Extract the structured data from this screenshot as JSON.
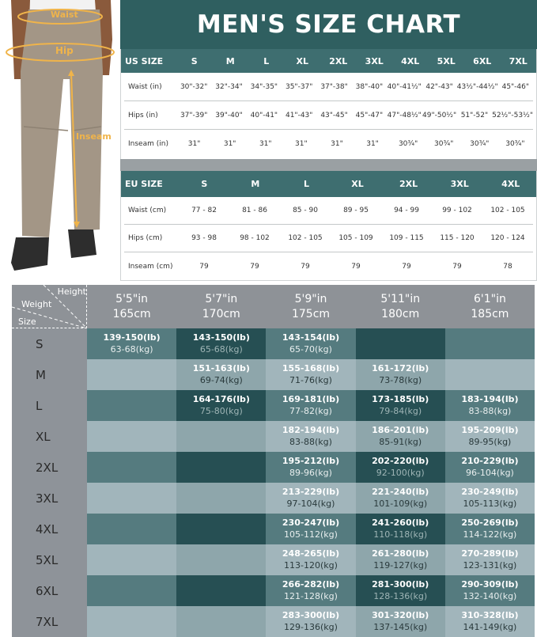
{
  "photo": {
    "labels": {
      "waist": "Waist",
      "hip": "Hip",
      "inseam": "Inseam"
    }
  },
  "title": "MEN'S SIZE CHART",
  "us": {
    "header": "US SIZE",
    "sizes": [
      "S",
      "M",
      "L",
      "XL",
      "2XL",
      "3XL",
      "4XL",
      "5XL",
      "6XL",
      "7XL"
    ],
    "rows": [
      {
        "label": "Waist (in)",
        "values": [
          "30\"-32\"",
          "32\"-34\"",
          "34\"-35\"",
          "35\"-37\"",
          "37\"-38\"",
          "38\"-40\"",
          "40\"-41½\"",
          "42\"-43\"",
          "43½\"-44½\"",
          "45\"-46\""
        ]
      },
      {
        "label": "Hips (in)",
        "values": [
          "37\"-39\"",
          "39\"-40\"",
          "40\"-41\"",
          "41\"-43\"",
          "43\"-45\"",
          "45\"-47\"",
          "47\"-48½\"",
          "49\"-50½\"",
          "51\"-52\"",
          "52½\"-53½\""
        ]
      },
      {
        "label": "Inseam (in)",
        "values": [
          "31\"",
          "31\"",
          "31\"",
          "31\"",
          "31\"",
          "31\"",
          "30¾\"",
          "30¾\"",
          "30¾\"",
          "30¾\""
        ]
      }
    ]
  },
  "eu": {
    "header": "EU SIZE",
    "sizes": [
      "S",
      "M",
      "L",
      "XL",
      "2XL",
      "3XL",
      "4XL"
    ],
    "rows": [
      {
        "label": "Waist (cm)",
        "values": [
          "77 - 82",
          "81 - 86",
          "85 - 90",
          "89 - 95",
          "94 - 99",
          "99 - 102",
          "102 - 105"
        ]
      },
      {
        "label": "Hips (cm)",
        "values": [
          "93 - 98",
          "98 - 102",
          "102 - 105",
          "105 - 109",
          "109 - 115",
          "115 - 120",
          "120 - 124"
        ]
      },
      {
        "label": "Inseam (cm)",
        "values": [
          "79",
          "79",
          "79",
          "79",
          "79",
          "79",
          "78"
        ]
      }
    ]
  },
  "grid": {
    "corner": {
      "height": "Height",
      "weight": "Weight",
      "size": "Size"
    },
    "heights": [
      {
        "ft": "5'5\"in",
        "cm": "165cm"
      },
      {
        "ft": "5'7\"in",
        "cm": "170cm"
      },
      {
        "ft": "5'9\"in",
        "cm": "175cm"
      },
      {
        "ft": "5'11\"in",
        "cm": "180cm"
      },
      {
        "ft": "6'1\"in",
        "cm": "185cm"
      }
    ],
    "rows": [
      {
        "size": "S",
        "cells": [
          [
            "139-150(lb)",
            "63-68(kg)"
          ],
          [
            "143-150(lb)",
            "65-68(kg)"
          ],
          [
            "143-154(lb)",
            "65-70(kg)"
          ],
          [
            "",
            ""
          ],
          [
            "",
            ""
          ]
        ]
      },
      {
        "size": "M",
        "cells": [
          [
            "",
            ""
          ],
          [
            "151-163(lb)",
            "69-74(kg)"
          ],
          [
            "155-168(lb)",
            "71-76(kg)"
          ],
          [
            "161-172(lb)",
            "73-78(kg)"
          ],
          [
            "",
            ""
          ]
        ]
      },
      {
        "size": "L",
        "cells": [
          [
            "",
            ""
          ],
          [
            "164-176(lb)",
            "75-80(kg)"
          ],
          [
            "169-181(lb)",
            "77-82(kg)"
          ],
          [
            "173-185(lb)",
            "79-84(kg)"
          ],
          [
            "183-194(lb)",
            "83-88(kg)"
          ]
        ]
      },
      {
        "size": "XL",
        "cells": [
          [
            "",
            ""
          ],
          [
            "",
            ""
          ],
          [
            "182-194(lb)",
            "83-88(kg)"
          ],
          [
            "186-201(lb)",
            "85-91(kg)"
          ],
          [
            "195-209(lb)",
            "89-95(kg)"
          ]
        ]
      },
      {
        "size": "2XL",
        "cells": [
          [
            "",
            ""
          ],
          [
            "",
            ""
          ],
          [
            "195-212(lb)",
            "89-96(kg)"
          ],
          [
            "202-220(lb)",
            "92-100(kg)"
          ],
          [
            "210-229(lb)",
            "96-104(kg)"
          ]
        ]
      },
      {
        "size": "3XL",
        "cells": [
          [
            "",
            ""
          ],
          [
            "",
            ""
          ],
          [
            "213-229(lb)",
            "97-104(kg)"
          ],
          [
            "221-240(lb)",
            "101-109(kg)"
          ],
          [
            "230-249(lb)",
            "105-113(kg)"
          ]
        ]
      },
      {
        "size": "4XL",
        "cells": [
          [
            "",
            ""
          ],
          [
            "",
            ""
          ],
          [
            "230-247(lb)",
            "105-112(kg)"
          ],
          [
            "241-260(lb)",
            "110-118(kg)"
          ],
          [
            "250-269(lb)",
            "114-122(kg)"
          ]
        ]
      },
      {
        "size": "5XL",
        "cells": [
          [
            "",
            ""
          ],
          [
            "",
            ""
          ],
          [
            "248-265(lb)",
            "113-120(kg)"
          ],
          [
            "261-280(lb)",
            "119-127(kg)"
          ],
          [
            "270-289(lb)",
            "123-131(kg)"
          ]
        ]
      },
      {
        "size": "6XL",
        "cells": [
          [
            "",
            ""
          ],
          [
            "",
            ""
          ],
          [
            "266-282(lb)",
            "121-128(kg)"
          ],
          [
            "281-300(lb)",
            "128-136(kg)"
          ],
          [
            "290-309(lb)",
            "132-140(kg)"
          ]
        ]
      },
      {
        "size": "7XL",
        "cells": [
          [
            "",
            ""
          ],
          [
            "",
            ""
          ],
          [
            "283-300(lb)",
            "129-136(kg)"
          ],
          [
            "301-320(lb)",
            "137-145(kg)"
          ],
          [
            "310-328(lb)",
            "141-149(kg)"
          ]
        ]
      }
    ]
  },
  "colors": {
    "banner": "#2f5f60",
    "table_header": "#3e6e70",
    "measure_line": "#f0b44a",
    "pants": "#a39686"
  }
}
